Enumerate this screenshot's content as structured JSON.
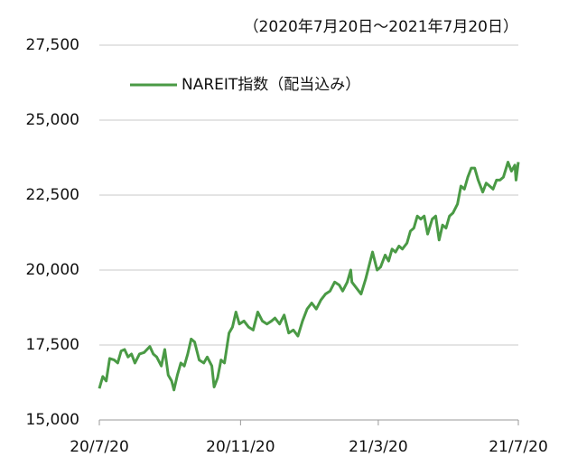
{
  "chart_data": {
    "type": "line",
    "annotation": "（2020年7月20日～2021年7月20日）",
    "ylim": [
      15000,
      27500
    ],
    "yticks": [
      {
        "value": 15000,
        "label": "15,000"
      },
      {
        "value": 17500,
        "label": "17,500"
      },
      {
        "value": 20000,
        "label": "20,000"
      },
      {
        "value": 22500,
        "label": "22,500"
      },
      {
        "value": 25000,
        "label": "25,000"
      },
      {
        "value": 27500,
        "label": "27,500"
      }
    ],
    "xlim": [
      "2020-07-20",
      "2021-07-20"
    ],
    "xticks": [
      {
        "value": "2020-07-20",
        "label": "20/7/20"
      },
      {
        "value": "2020-11-20",
        "label": "20/11/20"
      },
      {
        "value": "2021-03-20",
        "label": "21/3/20"
      },
      {
        "value": "2021-07-20",
        "label": "21/7/20"
      }
    ],
    "grid": true,
    "legend": "top-left",
    "x": [
      "2020-07-20",
      "2020-07-23",
      "2020-07-26",
      "2020-07-29",
      "2020-08-02",
      "2020-08-05",
      "2020-08-08",
      "2020-08-11",
      "2020-08-14",
      "2020-08-17",
      "2020-08-20",
      "2020-08-24",
      "2020-08-28",
      "2020-09-02",
      "2020-09-05",
      "2020-09-08",
      "2020-09-12",
      "2020-09-15",
      "2020-09-18",
      "2020-09-21",
      "2020-09-23",
      "2020-09-26",
      "2020-09-29",
      "2020-10-02",
      "2020-10-05",
      "2020-10-08",
      "2020-10-11",
      "2020-10-15",
      "2020-10-19",
      "2020-10-22",
      "2020-10-26",
      "2020-10-28",
      "2020-10-31",
      "2020-11-03",
      "2020-11-06",
      "2020-11-10",
      "2020-11-13",
      "2020-11-16",
      "2020-11-19",
      "2020-11-23",
      "2020-11-27",
      "2020-12-01",
      "2020-12-05",
      "2020-12-09",
      "2020-12-13",
      "2020-12-17",
      "2020-12-20",
      "2020-12-24",
      "2020-12-28",
      "2021-01-01",
      "2021-01-05",
      "2021-01-09",
      "2021-01-13",
      "2021-01-17",
      "2021-01-21",
      "2021-01-25",
      "2021-01-29",
      "2021-02-02",
      "2021-02-06",
      "2021-02-10",
      "2021-02-14",
      "2021-02-17",
      "2021-02-21",
      "2021-02-24",
      "2021-02-25",
      "2021-03-01",
      "2021-03-05",
      "2021-03-09",
      "2021-03-13",
      "2021-03-15",
      "2021-03-19",
      "2021-03-22",
      "2021-03-26",
      "2021-03-29",
      "2021-04-01",
      "2021-04-04",
      "2021-04-07",
      "2021-04-10",
      "2021-04-14",
      "2021-04-17",
      "2021-04-20",
      "2021-04-23",
      "2021-04-26",
      "2021-04-29",
      "2021-05-02",
      "2021-05-06",
      "2021-05-09",
      "2021-05-12",
      "2021-05-15",
      "2021-05-18",
      "2021-05-21",
      "2021-05-24",
      "2021-05-28",
      "2021-05-31",
      "2021-06-03",
      "2021-06-06",
      "2021-06-09",
      "2021-06-12",
      "2021-06-15",
      "2021-06-19",
      "2021-06-22",
      "2021-06-25",
      "2021-06-28",
      "2021-07-01",
      "2021-07-04",
      "2021-07-07",
      "2021-07-11",
      "2021-07-14",
      "2021-07-17",
      "2021-07-18",
      "2021-07-20"
    ],
    "series": [
      {
        "name": "NAREIT指数（配当込み）",
        "color": "#4a9a45",
        "values": [
          16050,
          16450,
          16300,
          17050,
          17000,
          16900,
          17300,
          17350,
          17100,
          17200,
          16900,
          17200,
          17250,
          17450,
          17200,
          17100,
          16800,
          17350,
          16500,
          16300,
          16000,
          16500,
          16900,
          16800,
          17200,
          17700,
          17600,
          17000,
          16900,
          17100,
          16800,
          16100,
          16400,
          17000,
          16900,
          17900,
          18100,
          18600,
          18200,
          18300,
          18100,
          18000,
          18600,
          18300,
          18200,
          18300,
          18400,
          18200,
          18500,
          17900,
          18000,
          17800,
          18300,
          18700,
          18900,
          18700,
          19000,
          19200,
          19300,
          19600,
          19500,
          19300,
          19600,
          20000,
          19600,
          19400,
          19200,
          19700,
          20300,
          20600,
          20000,
          20100,
          20500,
          20300,
          20700,
          20600,
          20800,
          20700,
          20900,
          21300,
          21400,
          21800,
          21700,
          21800,
          21200,
          21700,
          21800,
          21000,
          21500,
          21400,
          21800,
          21900,
          22200,
          22800,
          22700,
          23100,
          23400,
          23400,
          23000,
          22600,
          22900,
          22800,
          22700,
          23000,
          23000,
          23100,
          23600,
          23300,
          23500,
          23000,
          23600
        ]
      }
    ]
  }
}
